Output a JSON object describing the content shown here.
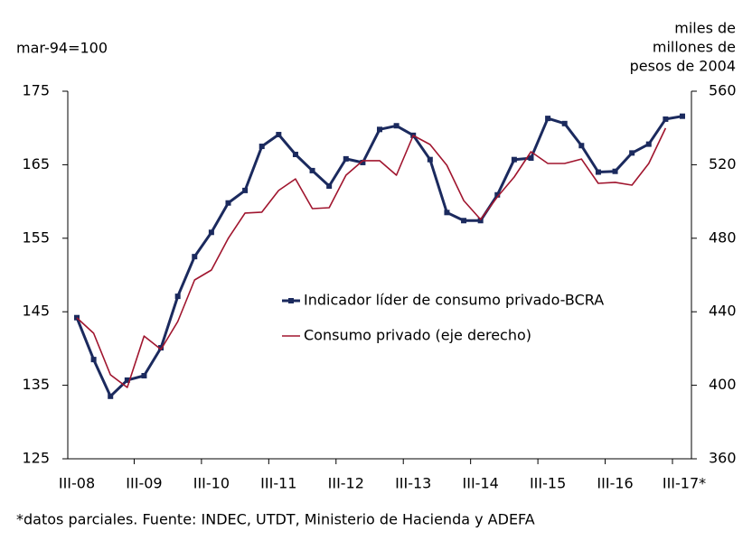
{
  "chart_data": {
    "type": "line",
    "ylabel": "mar-94=100",
    "y2label": [
      "miles de",
      "millones de",
      "pesos de 2004"
    ],
    "footnote": "*datos parciales. Fuente: INDEC, UTDT, Ministerio de Hacienda y ADEFA",
    "categories": [
      "III-08",
      null,
      null,
      null,
      "III-09",
      null,
      null,
      null,
      "III-10",
      null,
      null,
      null,
      "III-11",
      null,
      null,
      null,
      "III-12",
      null,
      null,
      null,
      "III-13",
      null,
      null,
      null,
      "III-14",
      null,
      null,
      null,
      "III-15",
      null,
      null,
      null,
      "III-16",
      null,
      null,
      null,
      "III-17*"
    ],
    "series": [
      {
        "name": "Indicador líder de consumo privado-BCRA",
        "color": "#1b2a5e",
        "markers": true,
        "values": [
          144.2,
          138.5,
          133.5,
          135.7,
          136.3,
          140.1,
          147.1,
          152.5,
          155.8,
          159.8,
          161.5,
          167.5,
          169.1,
          166.4,
          164.2,
          162.1,
          165.8,
          165.3,
          169.8,
          170.3,
          169.0,
          165.7,
          158.5,
          157.4,
          157.4,
          160.9,
          165.7,
          165.9,
          171.3,
          170.6,
          167.6,
          164.0,
          164.1,
          166.6,
          167.8,
          171.2,
          171.6
        ]
      },
      {
        "name": "Consumo privado (eje derecho)",
        "color": "#a0152e",
        "markers": false,
        "axis": "y2",
        "values": [
          436.7,
          428.3,
          405.7,
          398.8,
          426.8,
          419.5,
          434.7,
          457.3,
          462.7,
          479.9,
          493.7,
          494.2,
          506.0,
          512.3,
          496.1,
          496.6,
          514.3,
          522.2,
          522.2,
          514.3,
          535.9,
          531.0,
          519.7,
          500.5,
          490.2,
          502.5,
          513.3,
          527.1,
          520.7,
          520.7,
          523.1,
          509.9,
          510.4,
          508.9,
          520.7,
          539.9,
          null
        ]
      }
    ],
    "ylim": [
      125,
      175
    ],
    "yticks": [
      125,
      135,
      145,
      155,
      165,
      175
    ],
    "y2lim": [
      360,
      560
    ],
    "y2ticks": [
      360,
      400,
      440,
      480,
      520,
      560
    ],
    "grid": false,
    "legend": "center"
  }
}
